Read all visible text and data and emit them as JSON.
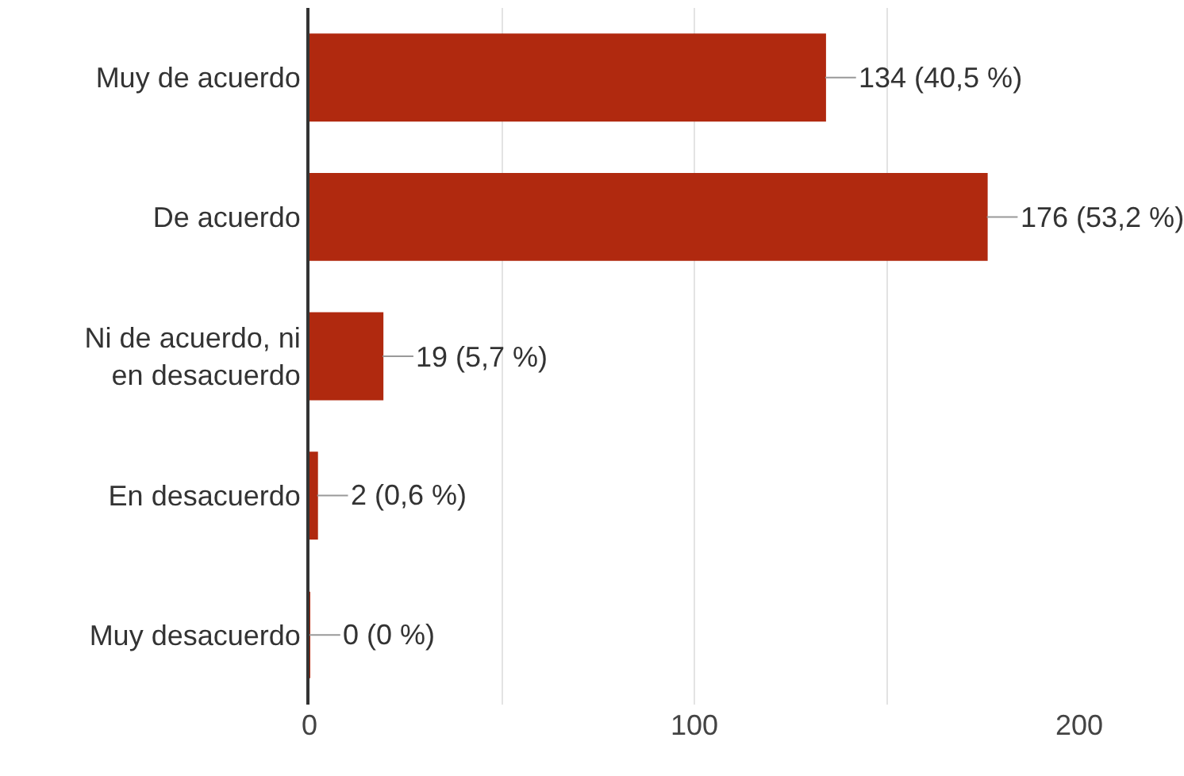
{
  "chart_data": {
    "type": "bar",
    "orientation": "horizontal",
    "categories": [
      "Muy de acuerdo",
      "De acuerdo",
      "Ni de acuerdo, ni\nen desacuerdo",
      "En desacuerdo",
      "Muy desacuerdo"
    ],
    "values": [
      134,
      176,
      19,
      2,
      0
    ],
    "value_labels": [
      "134 (40,5 %)",
      "176 (53,2 %)",
      "19 (5,7 %)",
      "2 (0,6 %)",
      "0 (0 %)"
    ],
    "color": "#b0290f",
    "xlim": [
      0,
      200
    ],
    "xticks": [
      0,
      {
        "value": 50,
        "label": null
      },
      100,
      {
        "value": 150,
        "label": null
      },
      200
    ],
    "grid": "x",
    "legend": false
  }
}
